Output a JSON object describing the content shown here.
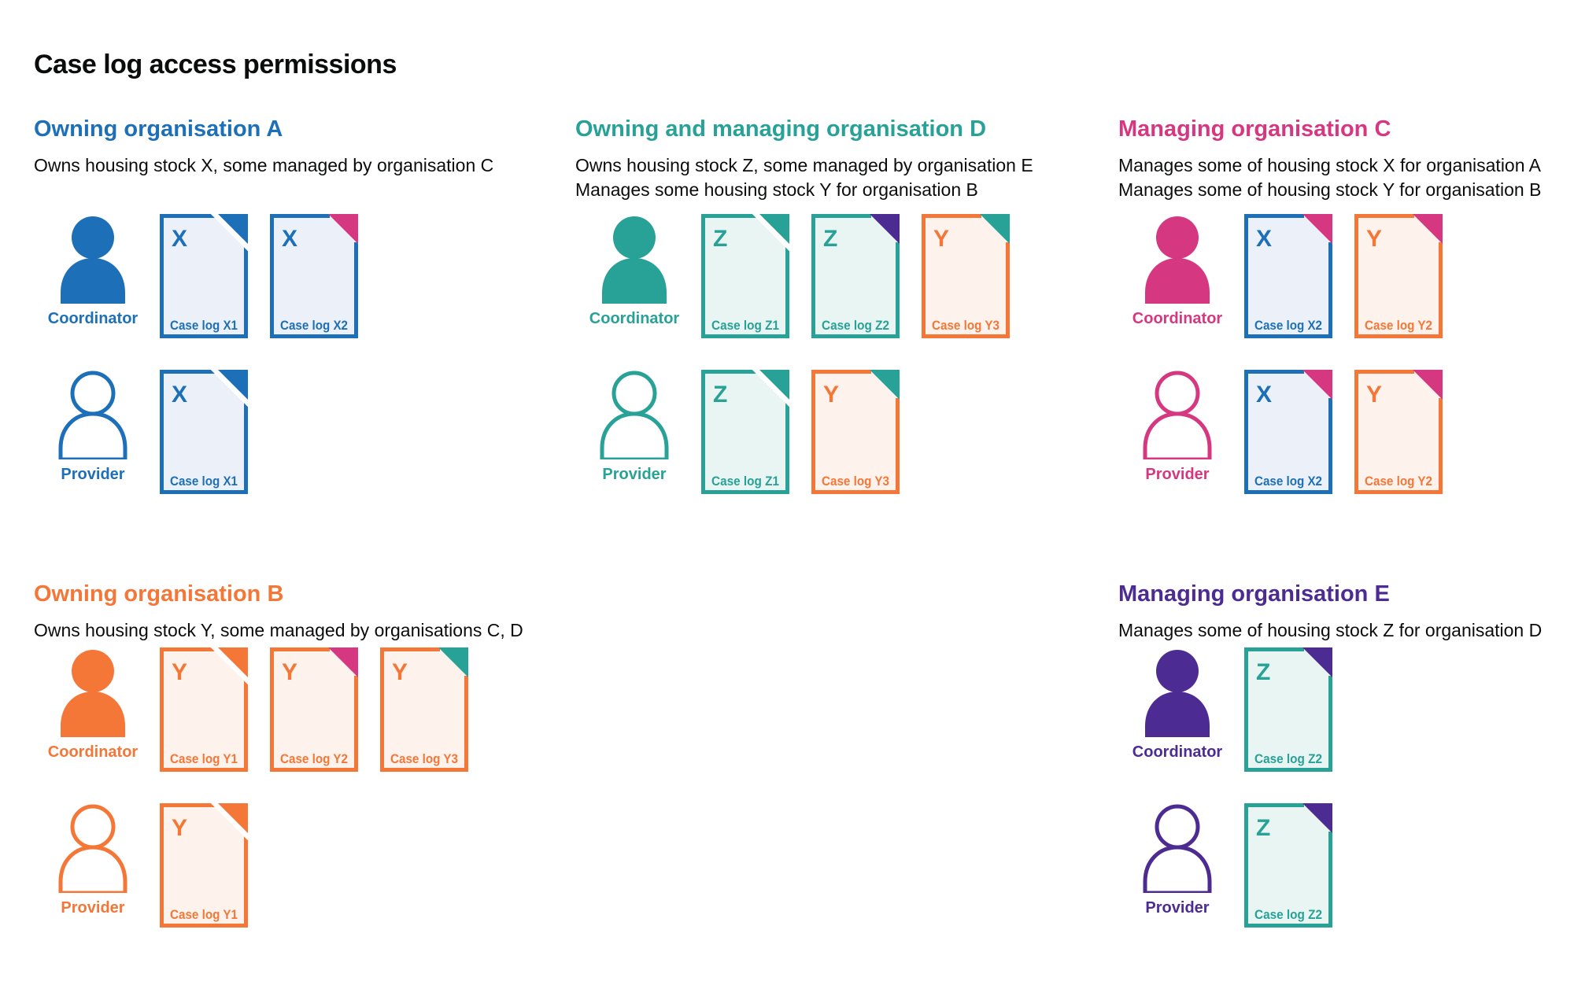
{
  "title": "Case log access permissions",
  "colors": {
    "blue": {
      "main": "#1d70b8",
      "tint": "#ecf1f9"
    },
    "teal": {
      "main": "#28a197",
      "tint": "#e9f5f3"
    },
    "pink": {
      "main": "#d53880",
      "tint": "#fbeef5"
    },
    "orange": {
      "main": "#f47738",
      "tint": "#fdf3ec"
    },
    "purple": {
      "main": "#4c2c92",
      "tint": "#edeaf4"
    },
    "text": "#0b0c0c"
  },
  "orgs": [
    {
      "id": "A",
      "heading": "Owning organisation A",
      "color": "blue",
      "subtitle1": "Owns housing stock X, some managed by organisation C",
      "subtitle2": "",
      "rows": [
        {
          "role": "Coordinator",
          "person": "filled",
          "docs": [
            {
              "letter": "X",
              "label": "Case log X1",
              "doc_color": "blue",
              "fold_color": "blue"
            },
            {
              "letter": "X",
              "label": "Case log X2",
              "doc_color": "blue",
              "fold_color": "pink"
            }
          ]
        },
        {
          "role": "Provider",
          "person": "outline",
          "docs": [
            {
              "letter": "X",
              "label": "Case log X1",
              "doc_color": "blue",
              "fold_color": "blue"
            }
          ]
        }
      ]
    },
    {
      "id": "D",
      "heading": "Owning and managing organisation D",
      "color": "teal",
      "subtitle1": "Owns housing stock Z, some managed by organisation E",
      "subtitle2": "Manages some housing stock Y for organisation B",
      "rows": [
        {
          "role": "Coordinator",
          "person": "filled",
          "docs": [
            {
              "letter": "Z",
              "label": "Case log Z1",
              "doc_color": "teal",
              "fold_color": "teal"
            },
            {
              "letter": "Z",
              "label": "Case log Z2",
              "doc_color": "teal",
              "fold_color": "purple"
            },
            {
              "letter": "Y",
              "label": "Case log Y3",
              "doc_color": "orange",
              "fold_color": "teal"
            }
          ]
        },
        {
          "role": "Provider",
          "person": "outline",
          "docs": [
            {
              "letter": "Z",
              "label": "Case log Z1",
              "doc_color": "teal",
              "fold_color": "teal"
            },
            {
              "letter": "Y",
              "label": "Case log Y3",
              "doc_color": "orange",
              "fold_color": "teal"
            }
          ]
        }
      ]
    },
    {
      "id": "C",
      "heading": "Managing organisation C",
      "color": "pink",
      "subtitle1": "Manages some of housing stock X for organisation A",
      "subtitle2": "Manages some of housing stock Y for organisation B",
      "rows": [
        {
          "role": "Coordinator",
          "person": "filled",
          "docs": [
            {
              "letter": "X",
              "label": "Case log X2",
              "doc_color": "blue",
              "fold_color": "pink"
            },
            {
              "letter": "Y",
              "label": "Case log Y2",
              "doc_color": "orange",
              "fold_color": "pink"
            }
          ]
        },
        {
          "role": "Provider",
          "person": "outline",
          "docs": [
            {
              "letter": "X",
              "label": "Case log X2",
              "doc_color": "blue",
              "fold_color": "pink"
            },
            {
              "letter": "Y",
              "label": "Case log Y2",
              "doc_color": "orange",
              "fold_color": "pink"
            }
          ]
        }
      ]
    },
    {
      "id": "B",
      "heading": "Owning organisation B",
      "color": "orange",
      "subtitle1": "Owns housing stock Y, some managed by organisations C, D",
      "subtitle2": "",
      "rows": [
        {
          "role": "Coordinator",
          "person": "filled",
          "docs": [
            {
              "letter": "Y",
              "label": "Case log Y1",
              "doc_color": "orange",
              "fold_color": "orange"
            },
            {
              "letter": "Y",
              "label": "Case log Y2",
              "doc_color": "orange",
              "fold_color": "pink"
            },
            {
              "letter": "Y",
              "label": "Case log Y3",
              "doc_color": "orange",
              "fold_color": "teal"
            }
          ]
        },
        {
          "role": "Provider",
          "person": "outline",
          "docs": [
            {
              "letter": "Y",
              "label": "Case log Y1",
              "doc_color": "orange",
              "fold_color": "orange"
            }
          ]
        }
      ]
    },
    {
      "id": "E",
      "heading": "Managing organisation E",
      "color": "purple",
      "subtitle1": "Manages some of housing stock Z for organisation D",
      "subtitle2": "",
      "rows": [
        {
          "role": "Coordinator",
          "person": "filled",
          "docs": [
            {
              "letter": "Z",
              "label": "Case log Z2",
              "doc_color": "teal",
              "fold_color": "purple"
            }
          ]
        },
        {
          "role": "Provider",
          "person": "outline",
          "docs": [
            {
              "letter": "Z",
              "label": "Case log Z2",
              "doc_color": "teal",
              "fold_color": "purple"
            }
          ]
        }
      ]
    }
  ]
}
